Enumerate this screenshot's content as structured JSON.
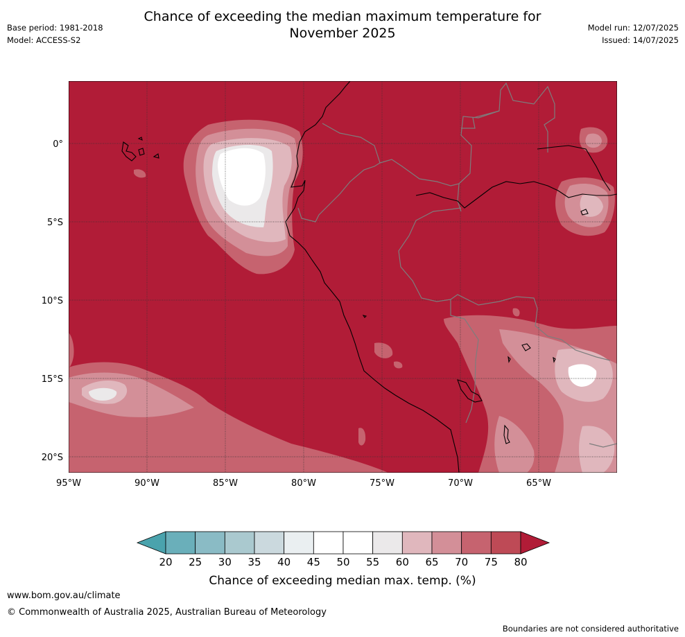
{
  "title_line1": "Chance of exceeding the median maximum temperature for",
  "title_line2": "November 2025",
  "meta_left": {
    "base_period": "Base period: 1981-2018",
    "model": "Model: ACCESS-S2"
  },
  "meta_right": {
    "model_run": "Model run: 12/07/2025",
    "issued": "Issued: 14/07/2025"
  },
  "map": {
    "lon_labels": [
      "95°W",
      "90°W",
      "85°W",
      "80°W",
      "75°W",
      "70°W",
      "65°W"
    ],
    "lat_labels": [
      "0°",
      "5°S",
      "10°S",
      "15°S",
      "20°S"
    ],
    "background_color": "#b11c37"
  },
  "colorbar": {
    "title": "Chance of exceeding median max. temp. (%)",
    "tick_labels": [
      "20",
      "25",
      "30",
      "35",
      "40",
      "45",
      "50",
      "55",
      "60",
      "65",
      "70",
      "75",
      "80"
    ],
    "colors": [
      "#4aa3ad",
      "#6aafba",
      "#8abbc5",
      "#aac9cf",
      "#cbd9de",
      "#eaeff1",
      "#ffffff",
      "#ffffff",
      "#ebe9ea",
      "#e0b7bd",
      "#d38f98",
      "#c6636f",
      "#be4a56",
      "#b11c37"
    ]
  },
  "footer": {
    "url": "www.bom.gov.au/climate",
    "copyright": "© Commonwealth of Australia 2025, Australian Bureau of Meteorology",
    "note": "Boundaries are not considered authoritative"
  }
}
